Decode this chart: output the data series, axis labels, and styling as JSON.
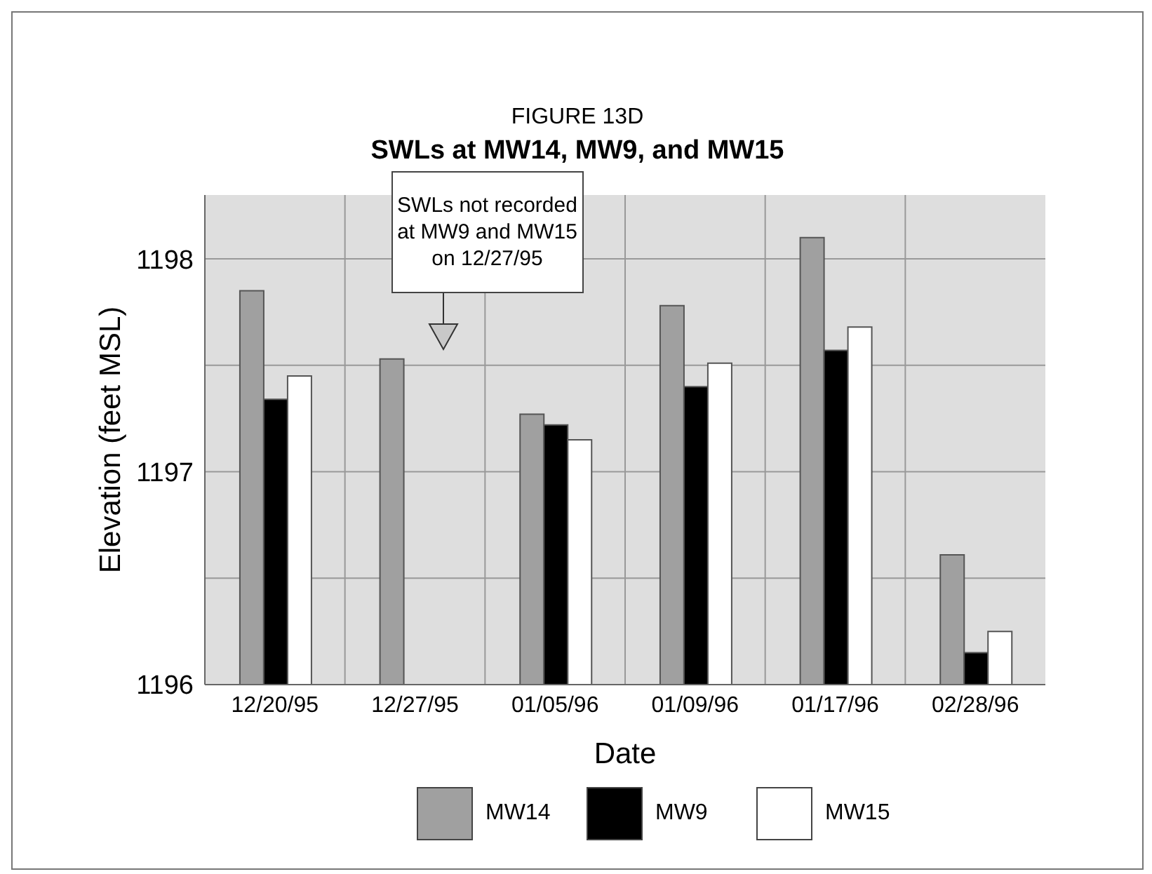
{
  "chart_data": {
    "type": "bar",
    "title": "FIGURE 13D",
    "subtitle": "SWLs at MW14, MW9, and MW15",
    "xlabel": "Date",
    "ylabel": "Elevation (feet MSL)",
    "categories": [
      "12/20/95",
      "12/27/95",
      "01/05/96",
      "01/09/96",
      "01/17/96",
      "02/28/96"
    ],
    "series": [
      {
        "name": "MW14",
        "color": "#a0a0a0",
        "values": [
          1197.85,
          1197.53,
          1197.27,
          1197.78,
          1198.1,
          1196.61
        ]
      },
      {
        "name": "MW9",
        "color": "#000000",
        "values": [
          1197.34,
          null,
          1197.22,
          1197.4,
          1197.57,
          1196.15
        ]
      },
      {
        "name": "MW15",
        "color": "#ffffff",
        "values": [
          1197.45,
          null,
          1197.15,
          1197.51,
          1197.68,
          1196.25
        ]
      }
    ],
    "ylim": [
      1196,
      1198.3
    ],
    "yticks": [
      1196,
      {
        "value": 1196.5,
        "label": null
      },
      1197,
      {
        "value": 1197.5,
        "label": null
      },
      1198
    ],
    "grid": true,
    "legend": "bottom",
    "annotations": [
      "SWLs not recorded at MW9 and MW15 on 12/27/95"
    ]
  }
}
